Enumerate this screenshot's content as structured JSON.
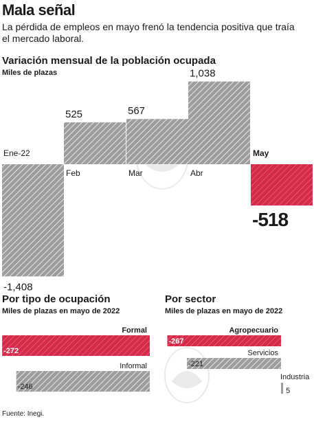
{
  "header": {
    "title": "Mala señal",
    "subtitle": "La pérdida de empleos en mayo frenó la tendencia positiva que traía el mercado laboral."
  },
  "footer": {
    "source": "Fuente: Inegi."
  },
  "colors": {
    "positive": "#9a9a9a",
    "negative": "#d62a4a",
    "text": "#1a1a1a"
  },
  "chart_data": [
    {
      "type": "bar",
      "title": "Variación mensual de la población ocupada",
      "subtitle": "Miles de plazas",
      "categories": [
        "Ene-22",
        "Feb",
        "Mar",
        "Abr",
        "May"
      ],
      "values": [
        -1408,
        525,
        567,
        1038,
        -518
      ],
      "value_labels": [
        "-1,408",
        "525",
        "567",
        "1,038",
        "-518"
      ],
      "highlight": "May"
    },
    {
      "type": "bar",
      "orientation": "horizontal",
      "title": "Por tipo de ocupación",
      "subtitle": "Miles de plazas en mayo de 2022",
      "categories": [
        "Formal",
        "Informal"
      ],
      "values": [
        -272,
        -246
      ],
      "value_labels": [
        "-272",
        "-246"
      ]
    },
    {
      "type": "bar",
      "orientation": "horizontal",
      "title": "Por sector",
      "subtitle": "Miles de plazas en mayo de 2022",
      "categories": [
        "Agropecuario",
        "Servicios",
        "Industria"
      ],
      "values": [
        -267,
        -221,
        5
      ],
      "value_labels": [
        "-267",
        "-221",
        "5"
      ]
    }
  ]
}
